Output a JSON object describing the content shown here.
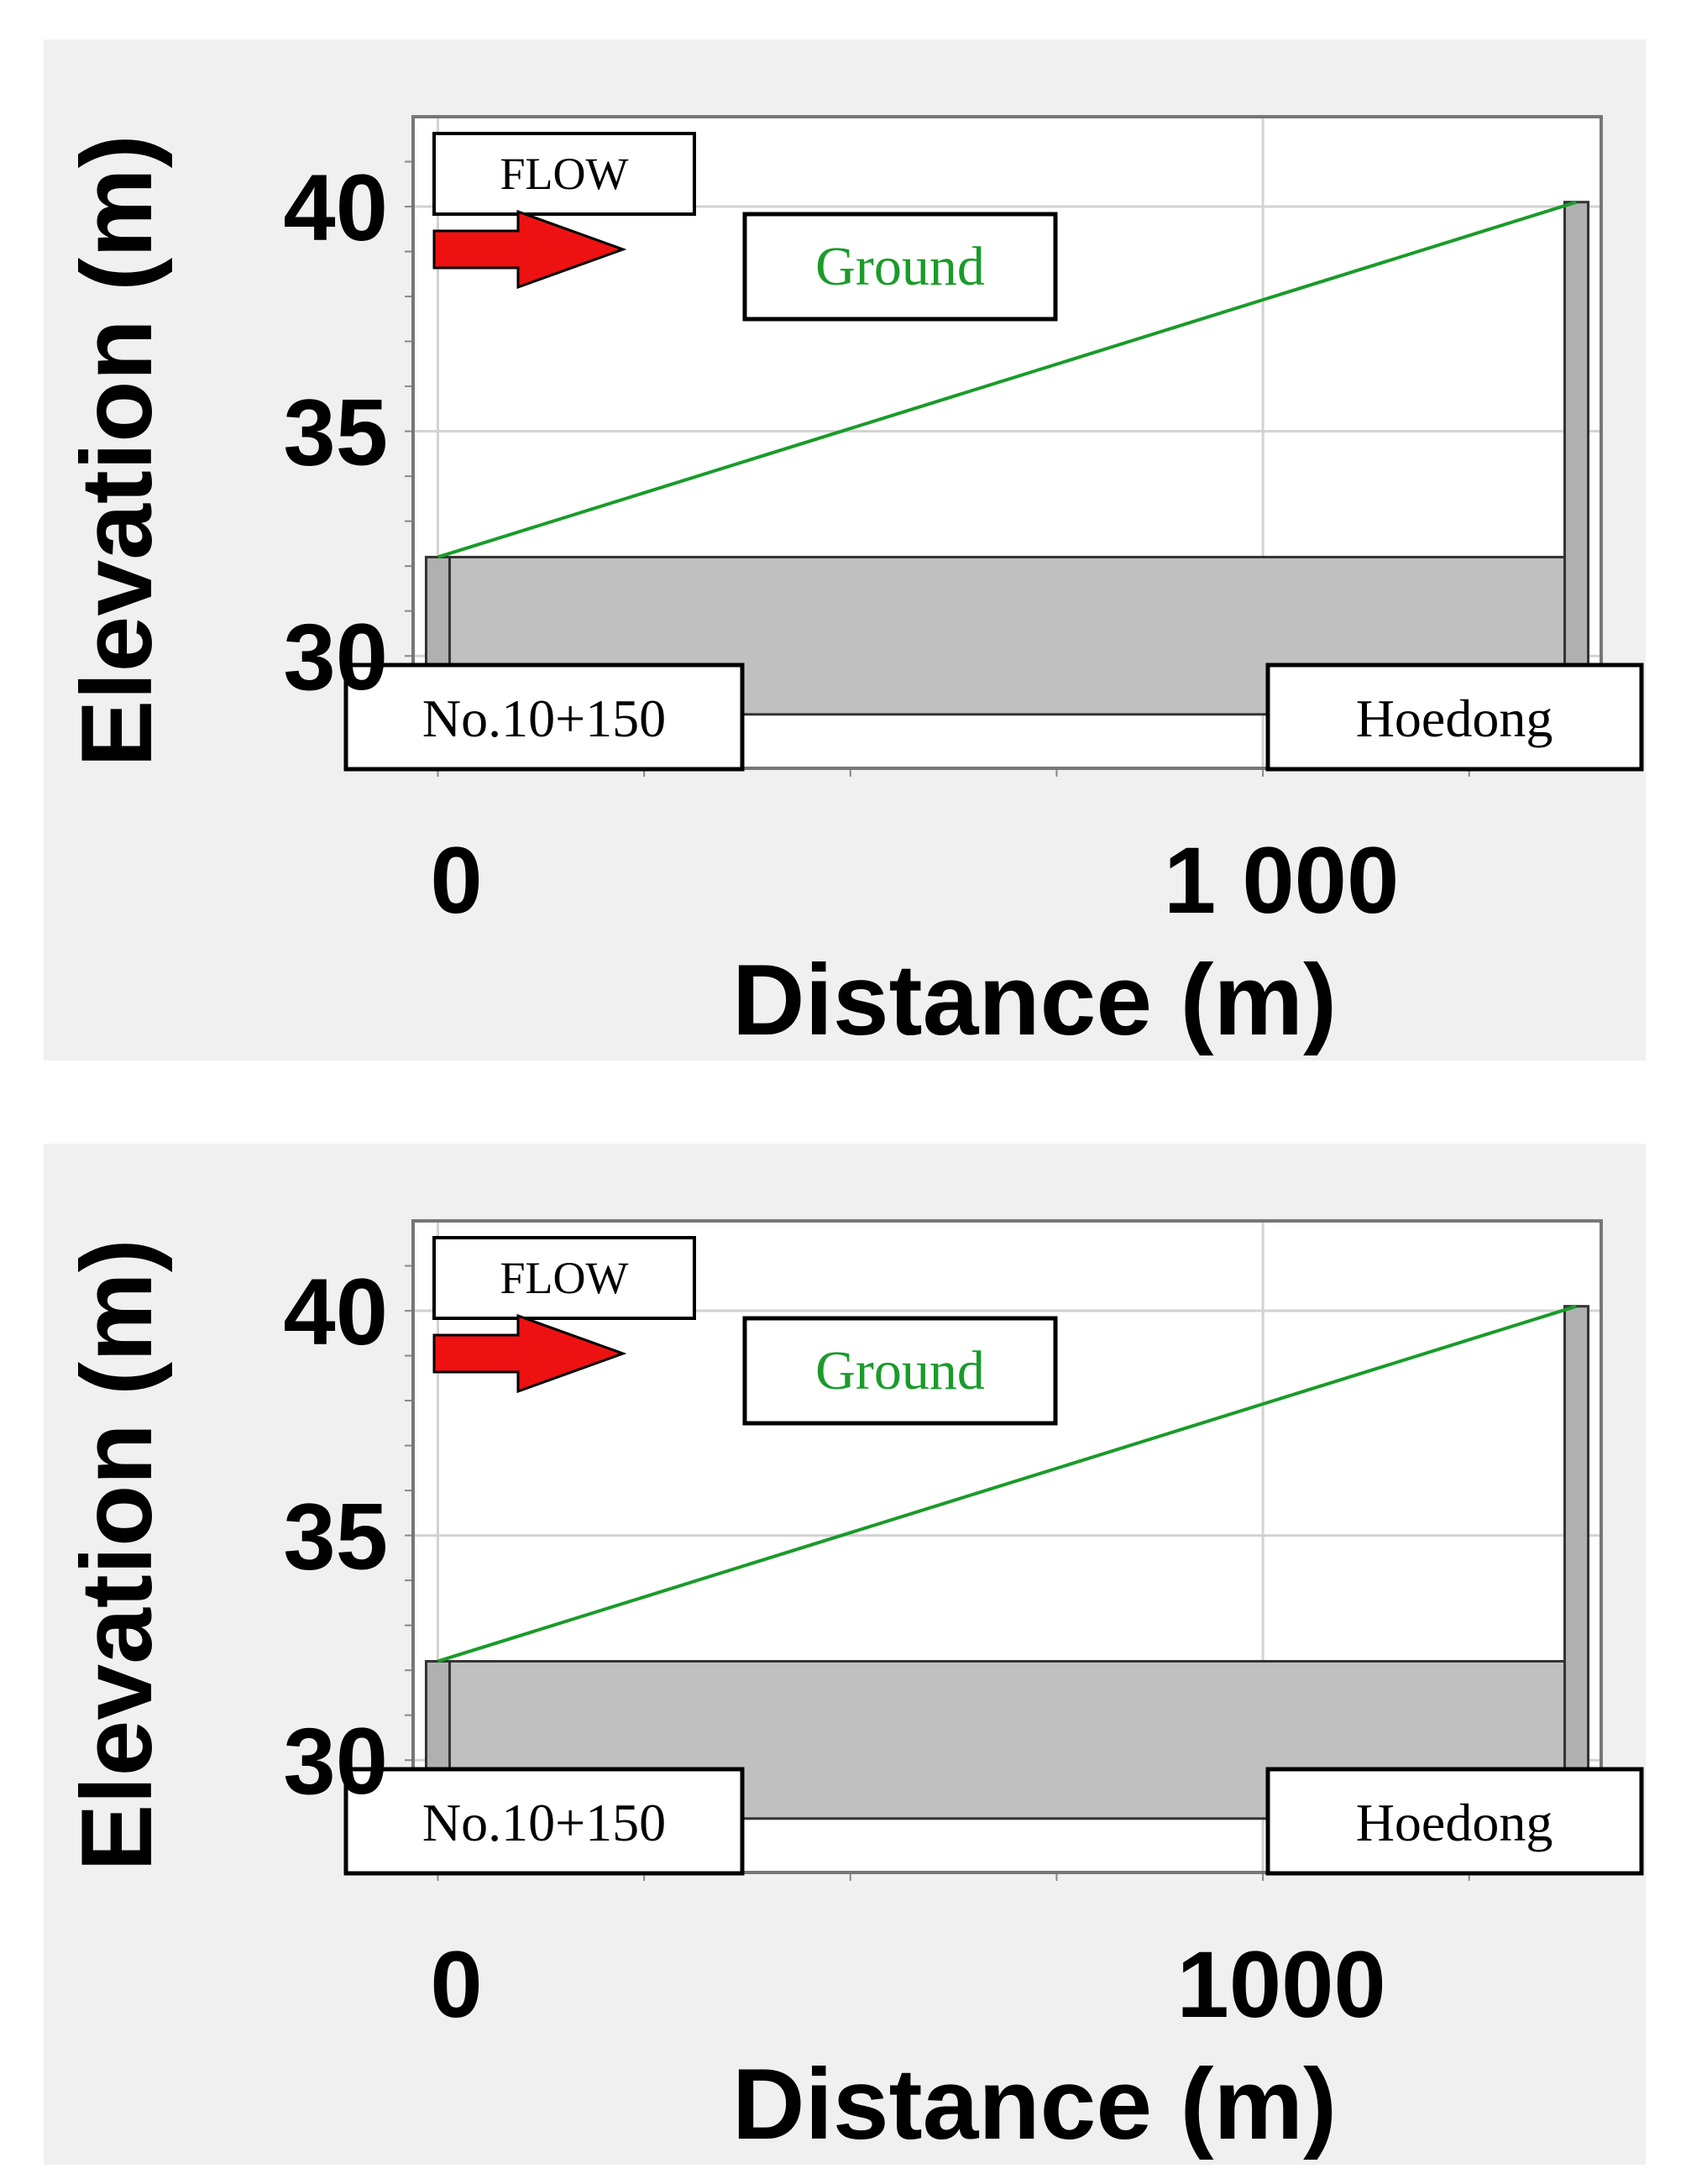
{
  "chart_data": [
    {
      "type": "line",
      "xlabel": "Distance (m)",
      "ylabel": "Elevation (m)",
      "xlim": [
        -30,
        1410
      ],
      "ylim": [
        27.5,
        42
      ],
      "x_tick_labels": [
        "0",
        "1 000"
      ],
      "x_ticks": [
        0,
        1000
      ],
      "y_ticks": [
        30,
        35,
        40
      ],
      "y_tick_labels": [
        "30",
        "35",
        "40"
      ],
      "grid": true,
      "series": [
        {
          "name": "Ground",
          "color": "#1a9b2a",
          "points": [
            [
              0,
              32.2
            ],
            [
              1380,
              40.1
            ]
          ]
        }
      ],
      "channel": {
        "x_start": 0,
        "x_end": 1380,
        "top": 32.2,
        "bottom": 28.7,
        "color": "#c0c0c0"
      },
      "annotations": {
        "flow": "FLOW",
        "ground_label": "Ground",
        "left_station": "No.10+150",
        "right_station": "Hoedong",
        "flow_arrow_color": "#ee1111"
      }
    },
    {
      "type": "line",
      "xlabel": "Distance (m)",
      "ylabel": "Elevation (m)",
      "xlim": [
        -30,
        1410
      ],
      "ylim": [
        27.5,
        42
      ],
      "x_tick_labels": [
        "0",
        "1000"
      ],
      "x_ticks": [
        0,
        1000
      ],
      "y_ticks": [
        30,
        35,
        40
      ],
      "y_tick_labels": [
        "30",
        "35",
        "40"
      ],
      "grid": true,
      "series": [
        {
          "name": "Ground",
          "color": "#1a9b2a",
          "points": [
            [
              0,
              32.2
            ],
            [
              1380,
              40.1
            ]
          ]
        }
      ],
      "channel": {
        "x_start": 0,
        "x_end": 1380,
        "top": 32.2,
        "bottom": 28.7,
        "color": "#c0c0c0"
      },
      "annotations": {
        "flow": "FLOW",
        "ground_label": "Ground",
        "left_station": "No.10+150",
        "right_station": "Hoedong",
        "flow_arrow_color": "#ee1111"
      }
    }
  ]
}
